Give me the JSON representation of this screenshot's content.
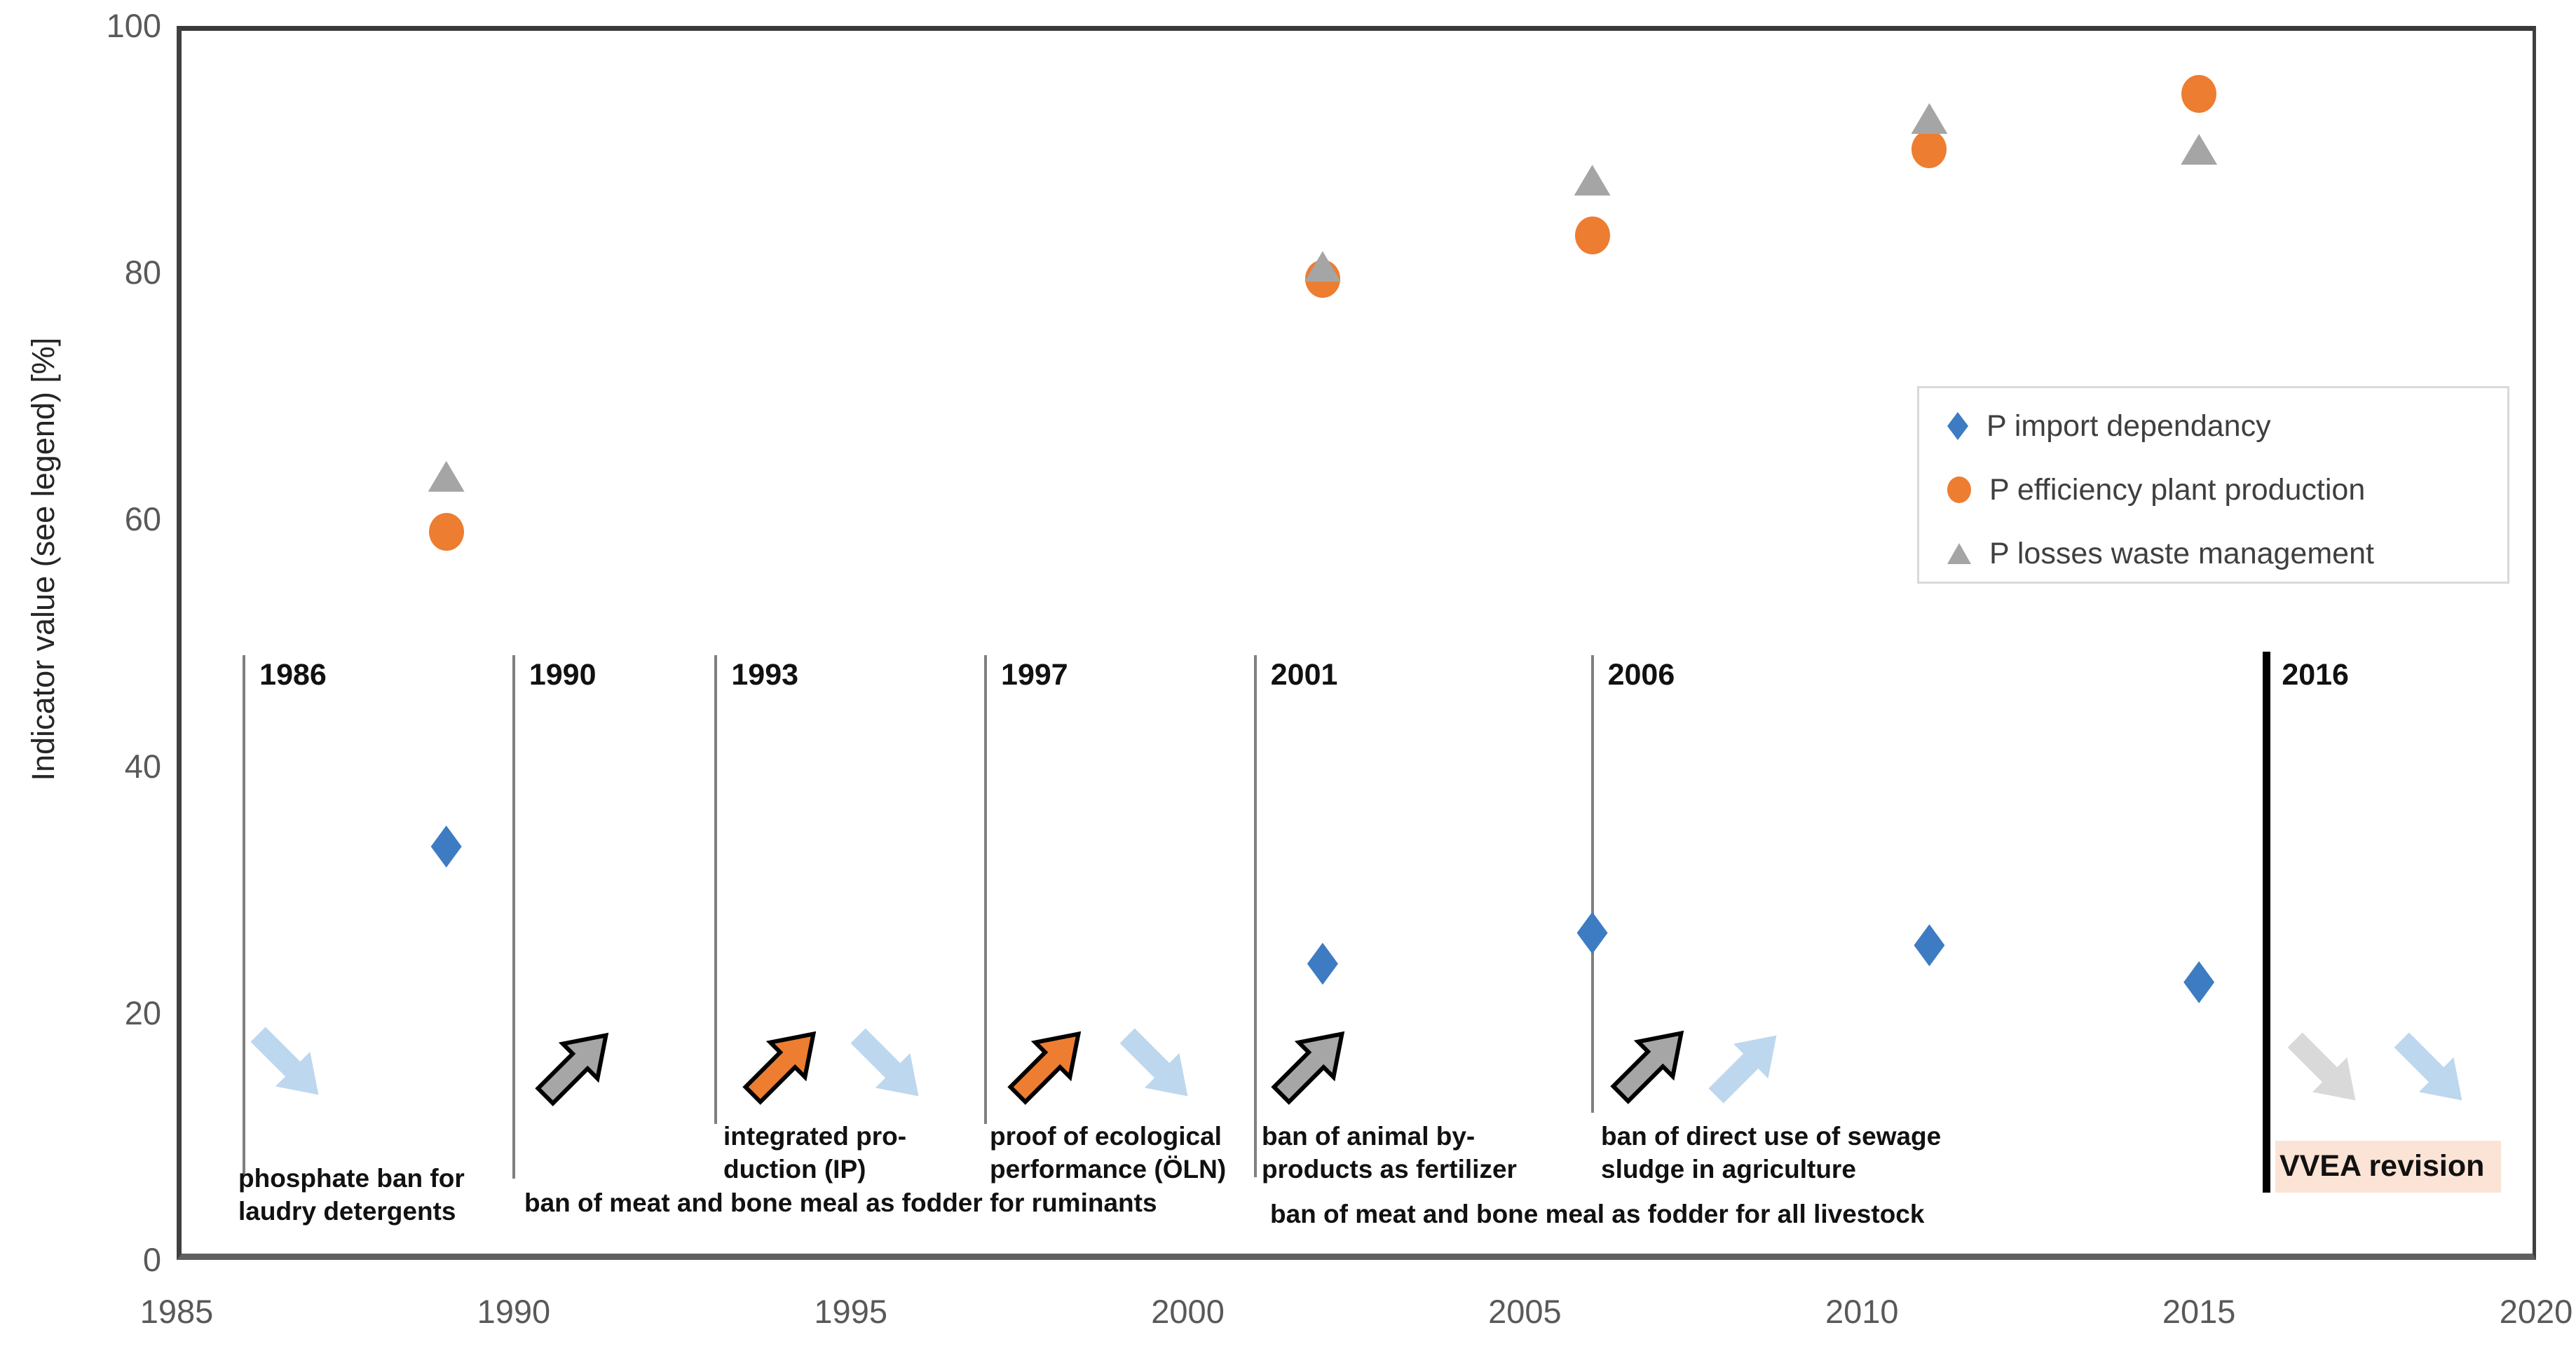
{
  "chart_data": {
    "type": "scatter",
    "title": "",
    "xlabel": "",
    "ylabel": "Indicator value (see legend) [%]",
    "xlim": [
      1985,
      2020
    ],
    "ylim": [
      0,
      100
    ],
    "xticks": [
      1985,
      1990,
      1995,
      2000,
      2005,
      2010,
      2015,
      2020
    ],
    "yticks": [
      0,
      20,
      40,
      60,
      80,
      100
    ],
    "grid": "horizontal",
    "legend_position": "middle-right",
    "series": [
      {
        "name": "P import dependancy",
        "marker": "diamond",
        "color": "#3d7cc2",
        "points": [
          [
            1989,
            33.5
          ],
          [
            2002,
            24
          ],
          [
            2006,
            26.5
          ],
          [
            2011,
            25.5
          ],
          [
            2015,
            22.5
          ]
        ]
      },
      {
        "name": "P efficiency plant production",
        "marker": "circle",
        "color": "#ed7d31",
        "points": [
          [
            1989,
            59
          ],
          [
            2002,
            79.5
          ],
          [
            2006,
            83
          ],
          [
            2011,
            90
          ],
          [
            2015,
            94.5
          ]
        ]
      },
      {
        "name": "P losses waste management",
        "marker": "triangle",
        "color": "#a5a5a5",
        "points": [
          [
            1989,
            63.5
          ],
          [
            2002,
            80.5
          ],
          [
            2006,
            87.5
          ],
          [
            2011,
            92.5
          ],
          [
            2015,
            90
          ]
        ]
      }
    ],
    "annotations": [
      {
        "year": "1986",
        "arrows": [
          {
            "dir": "down",
            "style": "lightblue"
          }
        ],
        "caption": [
          "phosphate ban for",
          "laudry detergents"
        ],
        "highlight": false
      },
      {
        "year": "1990",
        "arrows": [
          {
            "dir": "up",
            "style": "gray-outlined"
          }
        ],
        "caption": [],
        "highlight": false
      },
      {
        "year": "1993",
        "arrows": [
          {
            "dir": "up",
            "style": "orange-outlined"
          },
          {
            "dir": "down",
            "style": "lightblue"
          }
        ],
        "caption": [
          "integrated pro-",
          "duction (IP)"
        ],
        "highlight": false
      },
      {
        "year": "1997",
        "arrows": [
          {
            "dir": "up",
            "style": "orange-outlined"
          },
          {
            "dir": "down",
            "style": "lightblue"
          }
        ],
        "caption": [
          "proof of ecological",
          "performance (ÖLN)"
        ],
        "highlight": false
      },
      {
        "year": "2001",
        "arrows": [
          {
            "dir": "up",
            "style": "gray-outlined"
          }
        ],
        "caption": [
          "ban of animal by-",
          "products as fertilizer"
        ],
        "highlight": false
      },
      {
        "year": "2006",
        "arrows": [
          {
            "dir": "up",
            "style": "gray-outlined"
          },
          {
            "dir": "up",
            "style": "lightblue"
          }
        ],
        "caption": [
          "ban of direct use of sewage",
          "sludge in agriculture"
        ],
        "highlight": false
      },
      {
        "year": "2016",
        "arrows": [
          {
            "dir": "down",
            "style": "lightgray"
          },
          {
            "dir": "down",
            "style": "lightblue"
          }
        ],
        "caption": [
          "VVEA revision"
        ],
        "highlight": true
      }
    ],
    "footnotes": [
      "ban of meat and bone meal as fodder for ruminants",
      "ban of meat and bone meal as fodder for all livestock"
    ]
  },
  "colors": {
    "gridline": "#d9d9d9",
    "axis_text": "#595959",
    "annotation_line": "#7f7f7f",
    "annotation_line_2016": "#000000",
    "highlight_bg": "#fbe3d5",
    "arrow_lightblue": "#bdd7ee",
    "arrow_lightgray": "#d9d9d9",
    "arrow_gray": "#a6a6a6",
    "arrow_orange": "#ed7d31"
  }
}
